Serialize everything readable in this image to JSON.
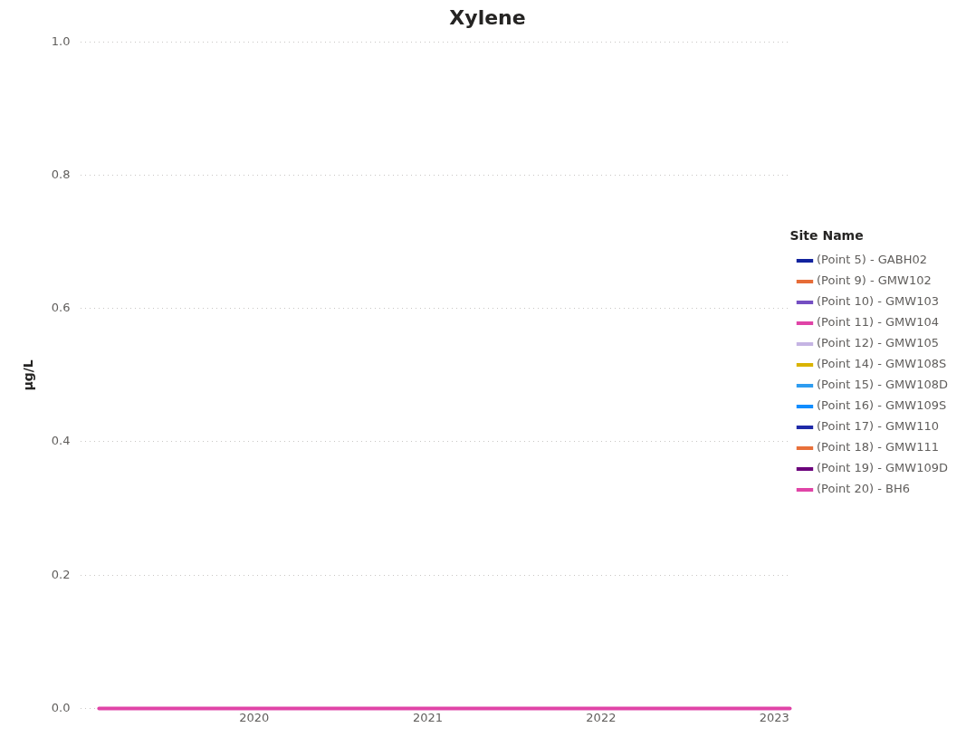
{
  "chart_data": {
    "type": "line",
    "title": "Xylene",
    "ylabel": "µg/L",
    "legend_title": "Site Name",
    "x": [
      "2019-02-08",
      "2023-02-03"
    ],
    "xlim": [
      "2019-01-01",
      "2023-02-03"
    ],
    "xticks": [
      {
        "value": "2020-01-01",
        "label": "2020"
      },
      {
        "value": "2021-01-01",
        "label": "2021"
      },
      {
        "value": "2022-01-01",
        "label": "2022"
      },
      {
        "value": "2023-01-01",
        "label": "2023"
      }
    ],
    "ylim": [
      0,
      1
    ],
    "yticks": [
      {
        "value": 0,
        "label": "0.0"
      },
      {
        "value": 0.2,
        "label": "0.2"
      },
      {
        "value": 0.4,
        "label": "0.4"
      },
      {
        "value": 0.6,
        "label": "0.6"
      },
      {
        "value": 0.8,
        "label": "0.8"
      },
      {
        "value": 1,
        "label": "1.0"
      }
    ],
    "grid": "y",
    "legend": "right",
    "marker": "none",
    "line_style": "solid",
    "series": [
      {
        "name": "(Point 5) - GABH02",
        "color": "#12239e",
        "values": [
          null,
          null
        ]
      },
      {
        "name": "(Point 9) - GMW102",
        "color": "#e66c37",
        "values": [
          null,
          null
        ]
      },
      {
        "name": "(Point 10) - GMW103",
        "color": "#744ec2",
        "values": [
          null,
          null
        ]
      },
      {
        "name": "(Point 11) - GMW104",
        "color": "#e044a7",
        "values": [
          null,
          null
        ]
      },
      {
        "name": "(Point 12) - GMW105",
        "color": "#c5b4e3",
        "values": [
          null,
          null
        ]
      },
      {
        "name": "(Point 14) - GMW108S",
        "color": "#d9b300",
        "values": [
          null,
          null
        ]
      },
      {
        "name": "(Point 15) - GMW108D",
        "color": "#2e9cf0",
        "values": [
          null,
          null
        ]
      },
      {
        "name": "(Point 16) - GMW109S",
        "color": "#118dff",
        "values": [
          null,
          null
        ]
      },
      {
        "name": "(Point 17) - GMW110",
        "color": "#1f2aa8",
        "values": [
          null,
          null
        ]
      },
      {
        "name": "(Point 18) - GMW111",
        "color": "#e8703a",
        "values": [
          null,
          null
        ]
      },
      {
        "name": "(Point 19) - GMW109D",
        "color": "#6b007b",
        "values": [
          null,
          null
        ]
      },
      {
        "name": "(Point 20) - BH6",
        "color": "#e044a7",
        "values": [
          0,
          0
        ]
      }
    ]
  }
}
